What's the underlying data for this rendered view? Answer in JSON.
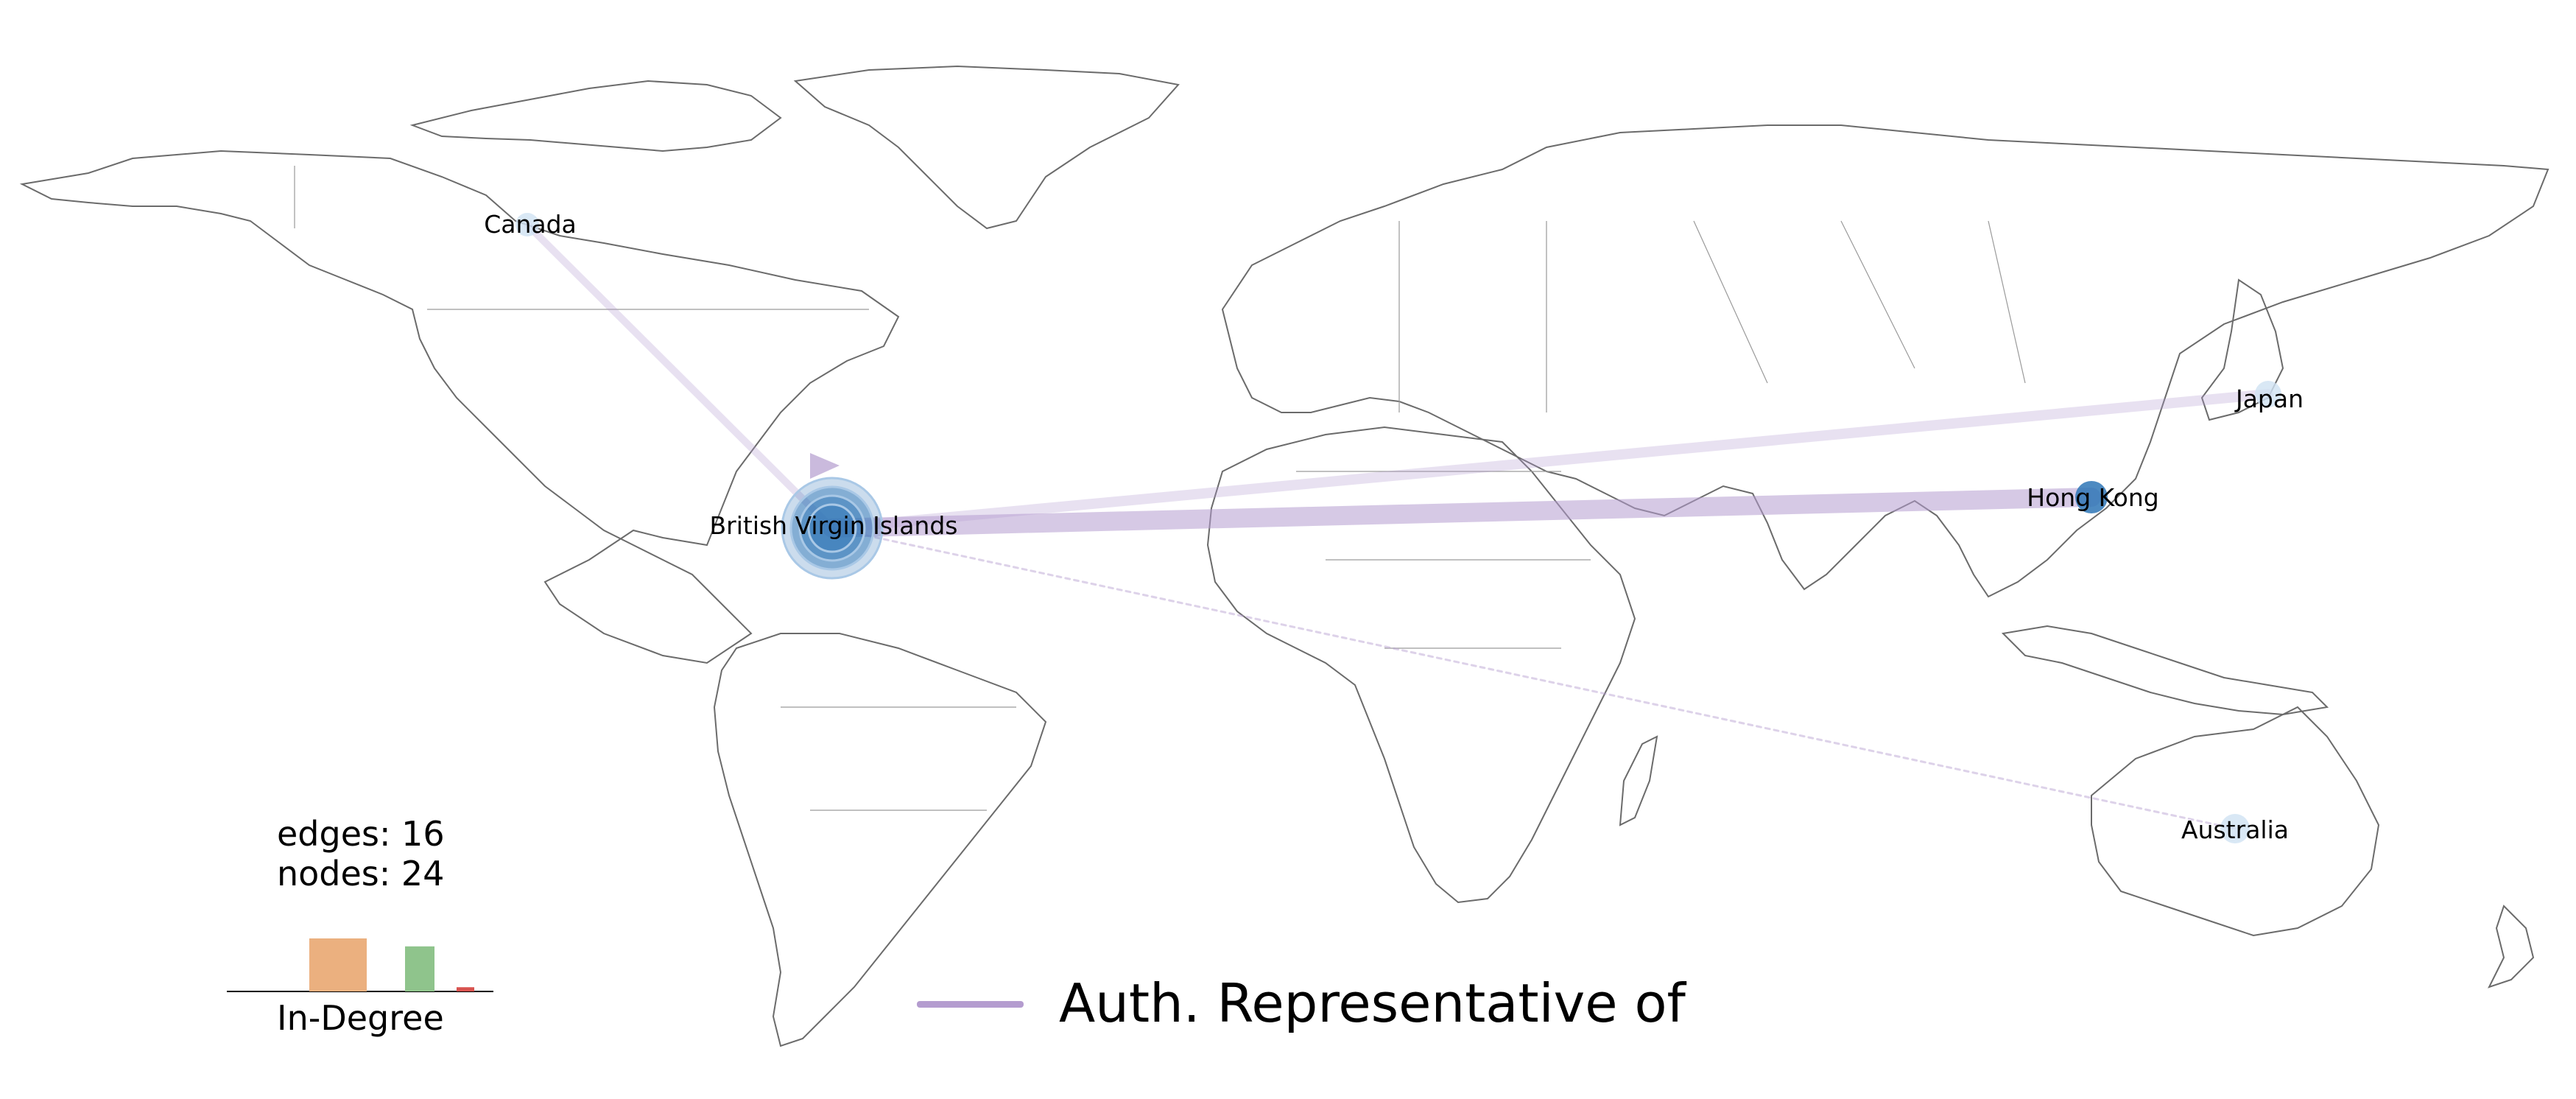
{
  "map": {
    "countries": [
      {
        "name": "Canada"
      },
      {
        "name": "British Virgin Islands"
      },
      {
        "name": "Hong Kong"
      },
      {
        "name": "Japan"
      },
      {
        "name": "Australia"
      }
    ],
    "edges": [
      {
        "from": "Canada",
        "to": "British Virgin Islands"
      },
      {
        "from": "British Virgin Islands",
        "to": "Japan"
      },
      {
        "from": "British Virgin Islands",
        "to": "Hong Kong"
      },
      {
        "from": "British Virgin Islands",
        "to": "Australia"
      },
      {
        "from": "British Virgin Islands",
        "to": "British Virgin Islands"
      }
    ],
    "node_color": "#2e75b6",
    "edge_color": "#b49ccf",
    "land_outline_color": "#555555"
  },
  "stats": {
    "edges_line": "edges: 16",
    "nodes_line": "nodes: 24"
  },
  "histogram": {
    "title": "In-Degree",
    "bars": [
      {
        "color": "#ebb07f",
        "value": 1.0
      },
      {
        "color": "#8fc48c",
        "value": 0.85
      },
      {
        "color": "#d9534f",
        "value": 0.08
      }
    ]
  },
  "legend": {
    "label": "Auth. Representative of",
    "color": "#b49ccf"
  }
}
